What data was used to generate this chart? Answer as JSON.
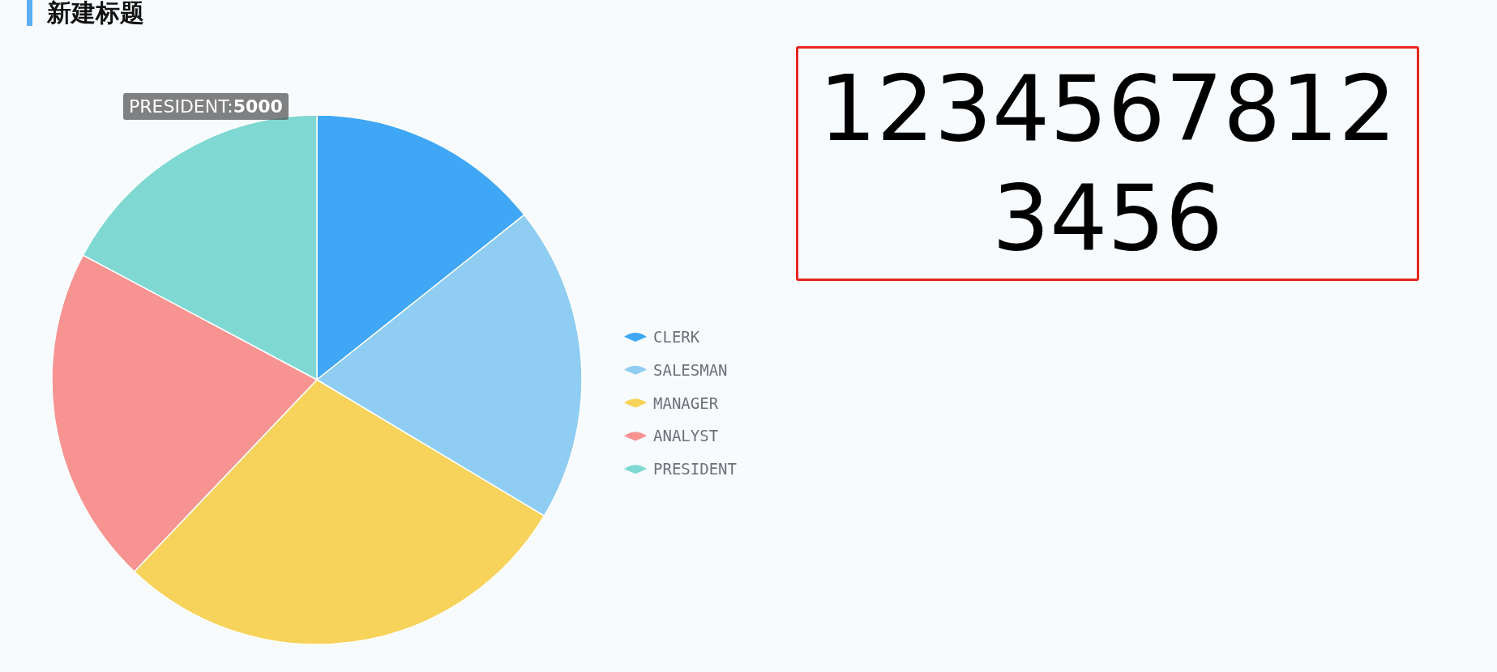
{
  "chart_data": [
    {
      "type": "pie",
      "title": "新建标题",
      "categories": [
        "CLERK",
        "SALESMAN",
        "MANAGER",
        "ANALYST",
        "PRESIDENT"
      ],
      "values": [
        14.3,
        19.3,
        28.5,
        20.7,
        17.2
      ],
      "colors": [
        "#3fa7f5",
        "#8fcdf2",
        "#f7d35c",
        "#f79390",
        "#80d8d2"
      ],
      "legend": "right",
      "annotations": [
        "PRESIDENT:**5000**"
      ]
    },
    {
      "type": "other",
      "annotations": [
        "12345678123456"
      ]
    }
  ]
}
